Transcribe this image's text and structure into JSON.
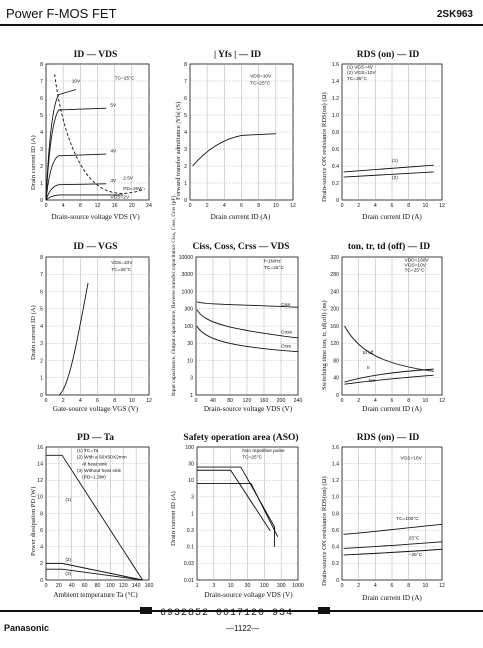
{
  "header": {
    "title": "Power F-MOS FET",
    "part": "2SK963"
  },
  "footer": {
    "brand": "Panasonic",
    "code": "6932852 0017120 934",
    "page": "—1122—"
  },
  "charts": [
    {
      "title": "ID — VDS",
      "xlabel": "Drain-source voltage VDS (V)",
      "ylabel": "Drain current ID (A)",
      "xticks": [
        "0",
        "4",
        "8",
        "12",
        "16",
        "20",
        "24"
      ],
      "yticks": [
        "0",
        "1",
        "2",
        "3",
        "4",
        "5",
        "6",
        "7",
        "8"
      ],
      "annotations": [
        "TC=25°C",
        "10V",
        "5V",
        "4V",
        "3V",
        "2.5V",
        "PD=15W",
        "VGS=2V"
      ]
    },
    {
      "title": "| Yfs | — ID",
      "xlabel": "Drain current ID (A)",
      "ylabel": "Forward transfer admittance |Yfs| (S)",
      "xticks": [
        "0",
        "2",
        "4",
        "6",
        "8",
        "10",
        "12"
      ],
      "yticks": [
        "0",
        "1",
        "2",
        "3",
        "4",
        "5",
        "6",
        "7",
        "8"
      ],
      "annotations": [
        "VDS=10V",
        "TC=25°C"
      ]
    },
    {
      "title": "RDS (on) — ID",
      "xlabel": "Drain current ID (A)",
      "ylabel": "Drain-source ON resistance RDS(on) (Ω)",
      "xticks": [
        "0",
        "2",
        "4",
        "6",
        "8",
        "10",
        "12"
      ],
      "yticks": [
        "0",
        "0.2",
        "0.4",
        "0.6",
        "0.8",
        "1.0",
        "1.2",
        "1.4",
        "1.6"
      ],
      "annotations": [
        "(1) VGS=4V",
        "(2) VGS=10V",
        "TC=25°C",
        "(1)",
        "(2)"
      ]
    },
    {
      "title": "ID — VGS",
      "xlabel": "Gate-source voltage VGS (V)",
      "ylabel": "Drain current ID (A)",
      "xticks": [
        "0",
        "2",
        "4",
        "6",
        "8",
        "10",
        "12"
      ],
      "yticks": [
        "0",
        "1",
        "2",
        "3",
        "4",
        "5",
        "6",
        "7",
        "8"
      ],
      "annotations": [
        "VDS=10V",
        "TC=25°C"
      ]
    },
    {
      "title": "Ciss, Coss, Crss — VDS",
      "xlabel": "Drain-source voltage VDS (V)",
      "ylabel": "Input capacitance, Output capacitance, Reverse transfer capacitance Ciss, Coss, Crss (pF)",
      "xticks": [
        "0",
        "40",
        "80",
        "120",
        "160",
        "200",
        "240"
      ],
      "yticks": [
        "1",
        "3",
        "10",
        "30",
        "100",
        "300",
        "1000",
        "3000",
        "10000"
      ],
      "annotations": [
        "f=1MHz",
        "TC=25°C",
        "Ciss",
        "Coss",
        "Crss"
      ]
    },
    {
      "title": "ton, tr, td (off) — ID",
      "xlabel": "Drain current ID (A)",
      "ylabel": "Switching time ton, tr, td(off) (ns)",
      "xticks": [
        "0",
        "2",
        "4",
        "6",
        "8",
        "10",
        "12"
      ],
      "yticks": [
        "0",
        "40",
        "80",
        "120",
        "160",
        "200",
        "240",
        "280",
        "320"
      ],
      "annotations": [
        "VDD=160V",
        "VGS=10V",
        "TC=25°C",
        "td off",
        "tr",
        "ton"
      ]
    },
    {
      "title": "PD — Ta",
      "xlabel": "Ambient temperature Ta (°C)",
      "ylabel": "Power dissipation PD (W)",
      "xticks": [
        "0",
        "20",
        "40",
        "60",
        "80",
        "100",
        "120",
        "140",
        "160"
      ],
      "yticks": [
        "0",
        "2",
        "4",
        "6",
        "8",
        "10",
        "12",
        "14",
        "16"
      ],
      "annotations": [
        "(1) TC=Ta",
        "(2) With a 50X50X2mm",
        "Al heat sink",
        "(3) Without heat sink",
        "(PD=1.3W)",
        "(1)",
        "(2)",
        "(3)"
      ]
    },
    {
      "title": "Safety operation area (ASO)",
      "xlabel": "Drain-source voltage VDS (V)",
      "ylabel": "Drain current ID (A)",
      "xticks": [
        "1",
        "3",
        "10",
        "30",
        "100",
        "300",
        "1000"
      ],
      "yticks": [
        "0.01",
        "0.03",
        "0.1",
        "0.3",
        "1",
        "3",
        "10",
        "30",
        "100"
      ],
      "annotations": [
        "Non repetitive pulse",
        "TC=25°C"
      ]
    },
    {
      "title": "RDS (on) — ID",
      "xlabel": "Drain current ID (A)",
      "ylabel": "Drain-source ON resistance RDS(on) (Ω)",
      "xticks": [
        "0",
        "2",
        "4",
        "6",
        "8",
        "10",
        "12"
      ],
      "yticks": [
        "0",
        "0.2",
        "0.4",
        "0.6",
        "0.8",
        "1.0",
        "1.2",
        "1.4",
        "1.6"
      ],
      "annotations": [
        "VGS=10V",
        "TC=100°C",
        "25°C",
        "−25°C"
      ]
    }
  ]
}
